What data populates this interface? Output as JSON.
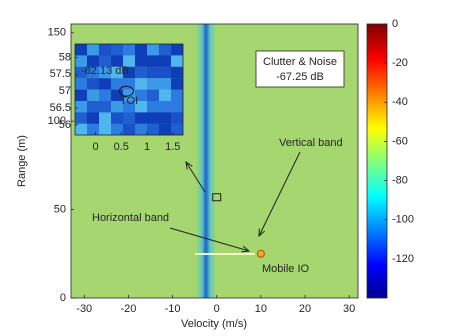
{
  "chart_data": {
    "type": "heatmap",
    "xlabel": "Velocity (m/s)",
    "ylabel": "Range (m)",
    "xlim": [
      -33,
      32
    ],
    "xticks": [
      -30,
      -20,
      -10,
      0,
      10,
      20,
      30
    ],
    "ylim": [
      0,
      155
    ],
    "yticks": [
      0,
      50,
      100,
      150
    ],
    "colorbar": {
      "lim": [
        -140,
        0
      ],
      "ticks": [
        0,
        -20,
        -40,
        -60,
        -80,
        -100,
        -120
      ]
    },
    "annotations": {
      "clutter_title": "Clutter & Noise",
      "clutter_value": "-67.25 dB",
      "vertical_band": "Vertical band",
      "horizontal_band": "Horizontal band",
      "mobile_io": "Mobile IO"
    },
    "markers": [
      {
        "x": 10,
        "y": 25
      },
      {
        "x": 0,
        "y": 57
      }
    ],
    "inset": {
      "xlim": [
        -0.4,
        1.7
      ],
      "xticks": [
        0,
        0.5,
        1,
        1.5
      ],
      "ylim": [
        55.7,
        58.4
      ],
      "yticks": [
        56,
        56.5,
        57,
        57.5,
        58
      ],
      "value_label": "-82.13 dB",
      "target_label": "TOI",
      "target": {
        "x": 0.6,
        "y": 57
      }
    }
  }
}
